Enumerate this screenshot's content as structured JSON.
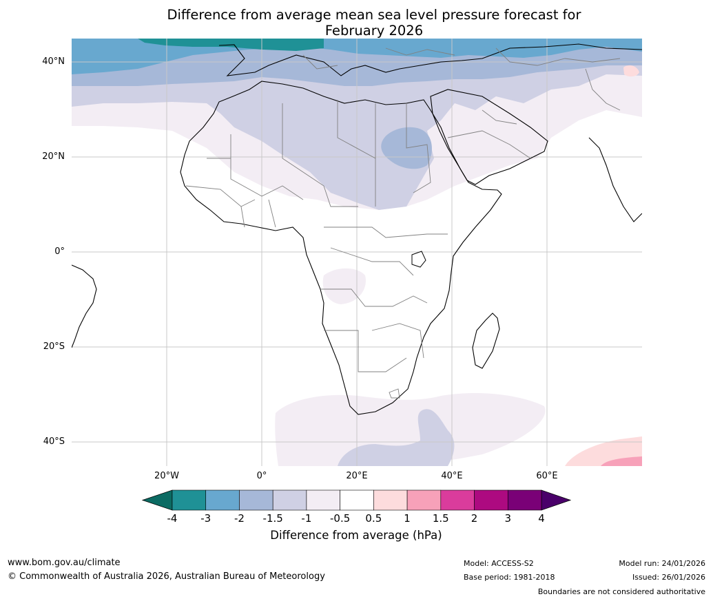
{
  "title": {
    "line1": "Difference from average mean sea level pressure forecast for",
    "line2": "February 2026"
  },
  "map": {
    "lat_labels": [
      "40°N",
      "20°N",
      "0°",
      "20°S",
      "40°S"
    ],
    "lon_labels": [
      "20°W",
      "0°",
      "20°E",
      "40°E",
      "60°E"
    ]
  },
  "legend": {
    "ticks": [
      "-4",
      "-3",
      "-2",
      "-1.5",
      "-1",
      "-0.5",
      "0.5",
      "1",
      "1.5",
      "2",
      "3",
      "4"
    ],
    "colors": [
      "#1f9196",
      "#68a8cf",
      "#a6b8d8",
      "#cfd0e4",
      "#f3edf4",
      "#ffffff",
      "#fddcdd",
      "#f7a1b9",
      "#da3c9c",
      "#ad0a80",
      "#7a0177"
    ],
    "low_extension_color": "#0c6b63",
    "high_extension_color": "#4a006a",
    "title": "Difference from average (hPa)"
  },
  "footer": {
    "website": "www.bom.gov.au/climate",
    "copyright": "© Commonwealth of Australia 2026, Australian Bureau of Meteorology",
    "model": "Model: ACCESS-S2",
    "base_period": "Base period: 1981-2018",
    "model_run": "Model run: 24/01/2026",
    "issued": "Issued: 26/01/2026",
    "disclaimer": "Boundaries are not considered authoritative"
  }
}
